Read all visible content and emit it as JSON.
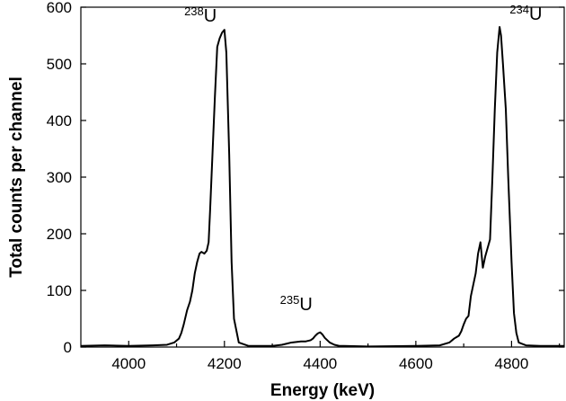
{
  "chart_data": {
    "type": "line",
    "xlabel": "Energy (keV)",
    "ylabel": "Total counts per channel",
    "xlim": [
      3900,
      4910
    ],
    "ylim": [
      0,
      600
    ],
    "xticks": [
      4000,
      4200,
      4400,
      4600,
      4800
    ],
    "yticks": [
      0,
      100,
      200,
      300,
      400,
      500,
      600
    ],
    "grid": false,
    "legend": "none",
    "line_color": "#000000",
    "series": [
      {
        "x": [
          3900,
          3950,
          4000,
          4050,
          4080,
          4095,
          4105,
          4110,
          4115,
          4122,
          4128,
          4133,
          4138,
          4143,
          4148,
          4152,
          4158,
          4163,
          4167,
          4170,
          4175,
          4180,
          4185,
          4190,
          4195,
          4200,
          4204,
          4210,
          4215,
          4220,
          4230,
          4250,
          4300,
          4320,
          4330,
          4340,
          4350,
          4360,
          4370,
          4380,
          4385,
          4390,
          4395,
          4400,
          4405,
          4410,
          4420,
          4430,
          4440,
          4450,
          4500,
          4600,
          4650,
          4670,
          4680,
          4690,
          4695,
          4700,
          4705,
          4710,
          4715,
          4720,
          4725,
          4730,
          4735,
          4740,
          4745,
          4750,
          4755,
          4760,
          4765,
          4770,
          4775,
          4778,
          4782,
          4788,
          4793,
          4800,
          4805,
          4810,
          4815,
          4830,
          4860,
          4910
        ],
        "y": [
          2,
          3,
          2,
          3,
          4,
          8,
          15,
          25,
          40,
          65,
          80,
          100,
          130,
          150,
          165,
          168,
          165,
          170,
          185,
          240,
          340,
          440,
          530,
          545,
          555,
          560,
          520,
          340,
          150,
          50,
          8,
          2,
          2,
          4,
          6,
          8,
          9,
          10,
          10,
          12,
          15,
          20,
          24,
          26,
          22,
          16,
          8,
          4,
          2,
          2,
          1,
          2,
          3,
          8,
          15,
          20,
          28,
          40,
          50,
          55,
          90,
          110,
          130,
          165,
          185,
          140,
          160,
          175,
          190,
          300,
          420,
          520,
          565,
          550,
          500,
          420,
          300,
          150,
          60,
          25,
          8,
          3,
          2,
          2
        ]
      }
    ],
    "annotations": [
      {
        "mass": "238",
        "element": "U",
        "x": 4150,
        "y": 575
      },
      {
        "mass": "235",
        "element": "U",
        "x": 4350,
        "y": 65
      },
      {
        "mass": "234",
        "element": "U",
        "x": 4830,
        "y": 578
      }
    ]
  }
}
